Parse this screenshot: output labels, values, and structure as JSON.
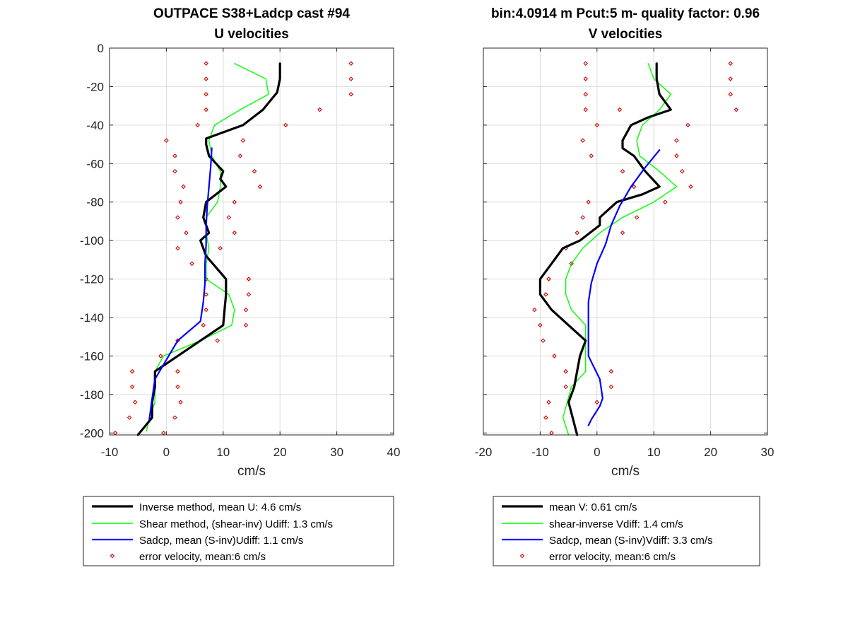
{
  "chart_data": [
    {
      "type": "line",
      "title": [
        "OUTPACE S38+Ladcp cast #94",
        "U velocities"
      ],
      "xlabel": "cm/s",
      "ylabel": "",
      "xlim": [
        -10,
        40
      ],
      "ylim": [
        -201,
        0
      ],
      "xticks": [
        -10,
        0,
        10,
        20,
        30,
        40
      ],
      "yticks": [
        0,
        -20,
        -40,
        -60,
        -80,
        -100,
        -120,
        -140,
        -160,
        -180,
        -200
      ],
      "grid": true,
      "legend_position": "below",
      "series": [
        {
          "name": "Inverse method, mean U:  4.6 cm/s",
          "color": "#000000",
          "style": "line",
          "width": 3.2,
          "x": [
            20,
            20,
            19.5,
            17,
            13.5,
            7,
            7,
            7.5,
            10,
            9.5,
            10.5,
            7,
            6.5,
            7,
            7.5,
            6,
            7,
            10.5,
            10.5,
            10,
            6,
            2,
            -2,
            -2,
            -2.5,
            -2.5,
            -5
          ],
          "y": [
            -8,
            -16,
            -23,
            -32,
            -40,
            -47,
            -50,
            -56,
            -64,
            -68,
            -72,
            -80,
            -88,
            -92,
            -96,
            -100,
            -108,
            -120,
            -128,
            -144,
            -152,
            -160,
            -168,
            -176,
            -184,
            -192,
            -201
          ]
        },
        {
          "name": "Shear method, (shear-inv)  Udiff:  1.3 cm/s",
          "color": "#00ff00",
          "style": "line",
          "width": 1.4,
          "x": [
            12,
            17.5,
            18,
            13,
            8.5,
            7.5,
            8,
            9.5,
            9.5,
            9,
            7,
            7,
            7.5,
            7,
            7,
            11,
            12,
            11.5,
            6,
            -0.5,
            -2,
            -2,
            -2,
            -3,
            -3.5
          ],
          "y": [
            -8,
            -16,
            -24,
            -32,
            -40,
            -48,
            -56,
            -64,
            -72,
            -80,
            -88,
            -96,
            -104,
            -112,
            -120,
            -128,
            -136,
            -144,
            -152,
            -160,
            -168,
            -176,
            -184,
            -192,
            -199
          ]
        },
        {
          "name": "Sadcp, mean (S-inv)Udiff: 1.1 cm/s",
          "color": "#0000ff",
          "style": "line",
          "width": 2.2,
          "x": [
            8,
            7.8,
            7.5,
            7.2,
            7,
            7,
            6.8,
            6.8,
            6.5,
            6,
            2,
            -2,
            -2.5,
            -3
          ],
          "y": [
            -52,
            -62,
            -72,
            -82,
            -92,
            -102,
            -112,
            -122,
            -132,
            -142,
            -152,
            -172,
            -182,
            -193
          ]
        },
        {
          "name": "error velocity, mean:6 cm/s",
          "color": "#cc0000",
          "style": "marker",
          "x": [
            7,
            32.5,
            7,
            32.5,
            7,
            32.5,
            7,
            27,
            5.5,
            21,
            0,
            13.5,
            1.5,
            13,
            1.5,
            15.5,
            3,
            16.5,
            2.5,
            12,
            2,
            11,
            3.5,
            12,
            2,
            9.5,
            4.5,
            7,
            14.5,
            7,
            14.5,
            7,
            14,
            6.5,
            14,
            2,
            9,
            -1,
            -6,
            2,
            -6,
            2,
            -5.5,
            2.5,
            -6.5,
            1.5,
            -9,
            -0.5
          ],
          "y": [
            -8,
            -8,
            -16,
            -16,
            -24,
            -24,
            -32,
            -32,
            -40,
            -40,
            -48,
            -48,
            -56,
            -56,
            -64,
            -64,
            -72,
            -72,
            -80,
            -80,
            -88,
            -88,
            -96,
            -96,
            -104,
            -104,
            -112,
            -120,
            -120,
            -128,
            -128,
            -136,
            -136,
            -144,
            -144,
            -152,
            -152,
            -160,
            -168,
            -168,
            -176,
            -176,
            -184,
            -184,
            -192,
            -192,
            -200,
            -200
          ]
        }
      ]
    },
    {
      "type": "line",
      "title": [
        "bin:4.0914 m  Pcut:5 m- quality factor:  0.96",
        "V velocities"
      ],
      "xlabel": "cm/s",
      "ylabel": "",
      "xlim": [
        -20,
        30
      ],
      "ylim": [
        -201,
        0
      ],
      "xticks": [
        -20,
        -10,
        0,
        10,
        20,
        30
      ],
      "yticks": [
        0,
        -20,
        -40,
        -60,
        -80,
        -100,
        -120,
        -140,
        -160,
        -180,
        -200
      ],
      "grid": true,
      "legend_position": "below",
      "series": [
        {
          "name": "mean V:  0.61 cm/s",
          "color": "#000000",
          "style": "line",
          "width": 3.2,
          "x": [
            10.5,
            10.5,
            11,
            13,
            9,
            6,
            4.5,
            4.5,
            6.5,
            8.5,
            11,
            8,
            3.5,
            0.5,
            0.5,
            -3,
            -6,
            -8,
            -10,
            -10,
            -8,
            -5,
            -2,
            -3,
            -4,
            -5,
            -3.5
          ],
          "y": [
            -8,
            -16,
            -24,
            -32,
            -36,
            -40,
            -48,
            -52,
            -56,
            -64,
            -72,
            -76,
            -80,
            -88,
            -92,
            -100,
            -104,
            -112,
            -120,
            -128,
            -136,
            -144,
            -152,
            -160,
            -176,
            -184,
            -201
          ]
        },
        {
          "name": "shear-inverse Vdiff:  1.4 cm/s",
          "color": "#00ff00",
          "style": "line",
          "width": 1.4,
          "x": [
            9,
            10,
            13,
            11,
            8,
            7,
            7.5,
            11,
            14,
            10,
            4.5,
            0.5,
            -2.5,
            -4.5,
            -5.5,
            -5.5,
            -4.5,
            -2,
            -2,
            -4.5,
            -6,
            -5
          ],
          "y": [
            -8,
            -16,
            -24,
            -32,
            -40,
            -48,
            -56,
            -64,
            -72,
            -80,
            -88,
            -96,
            -104,
            -112,
            -120,
            -128,
            -136,
            -144,
            -168,
            -176,
            -192,
            -201
          ]
        },
        {
          "name": "Sadcp, mean (S-inv)Vdiff: 3.3 cm/s",
          "color": "#0000ff",
          "style": "line",
          "width": 2.2,
          "x": [
            11,
            8.5,
            6,
            4,
            2.5,
            1.5,
            0,
            -1,
            -1.5,
            -1.5,
            -1.5,
            -1.5,
            0.5,
            1,
            0.5,
            -1,
            -1.5
          ],
          "y": [
            -53,
            -62,
            -72,
            -82,
            -92,
            -102,
            -112,
            -122,
            -132,
            -142,
            -152,
            -160,
            -172,
            -182,
            -186,
            -193,
            -196
          ]
        },
        {
          "name": "error velocity, mean:6 cm/s",
          "color": "#cc0000",
          "style": "marker",
          "x": [
            -2,
            23.5,
            -2,
            23.5,
            -2,
            23.5,
            -2,
            24.5,
            4,
            0,
            16,
            -2.5,
            14,
            -1,
            14,
            4.5,
            15,
            6.5,
            16.5,
            -1.5,
            12,
            -2.5,
            7,
            -3.5,
            4.5,
            -5.5,
            -4.5,
            -8.5,
            -9,
            -11,
            -10,
            -9.5,
            -7.5,
            -5.5,
            2.5,
            -5.5,
            2.5,
            -8.5,
            0,
            -9,
            -8
          ],
          "y": [
            -8,
            -8,
            -16,
            -16,
            -24,
            -24,
            -32,
            -32,
            -32,
            -40,
            -40,
            -48,
            -48,
            -56,
            -56,
            -64,
            -64,
            -72,
            -72,
            -80,
            -80,
            -88,
            -88,
            -96,
            -96,
            -104,
            -112,
            -120,
            -128,
            -136,
            -144,
            -152,
            -160,
            -168,
            -168,
            -176,
            -176,
            -184,
            -184,
            -192,
            -200
          ]
        }
      ]
    }
  ]
}
